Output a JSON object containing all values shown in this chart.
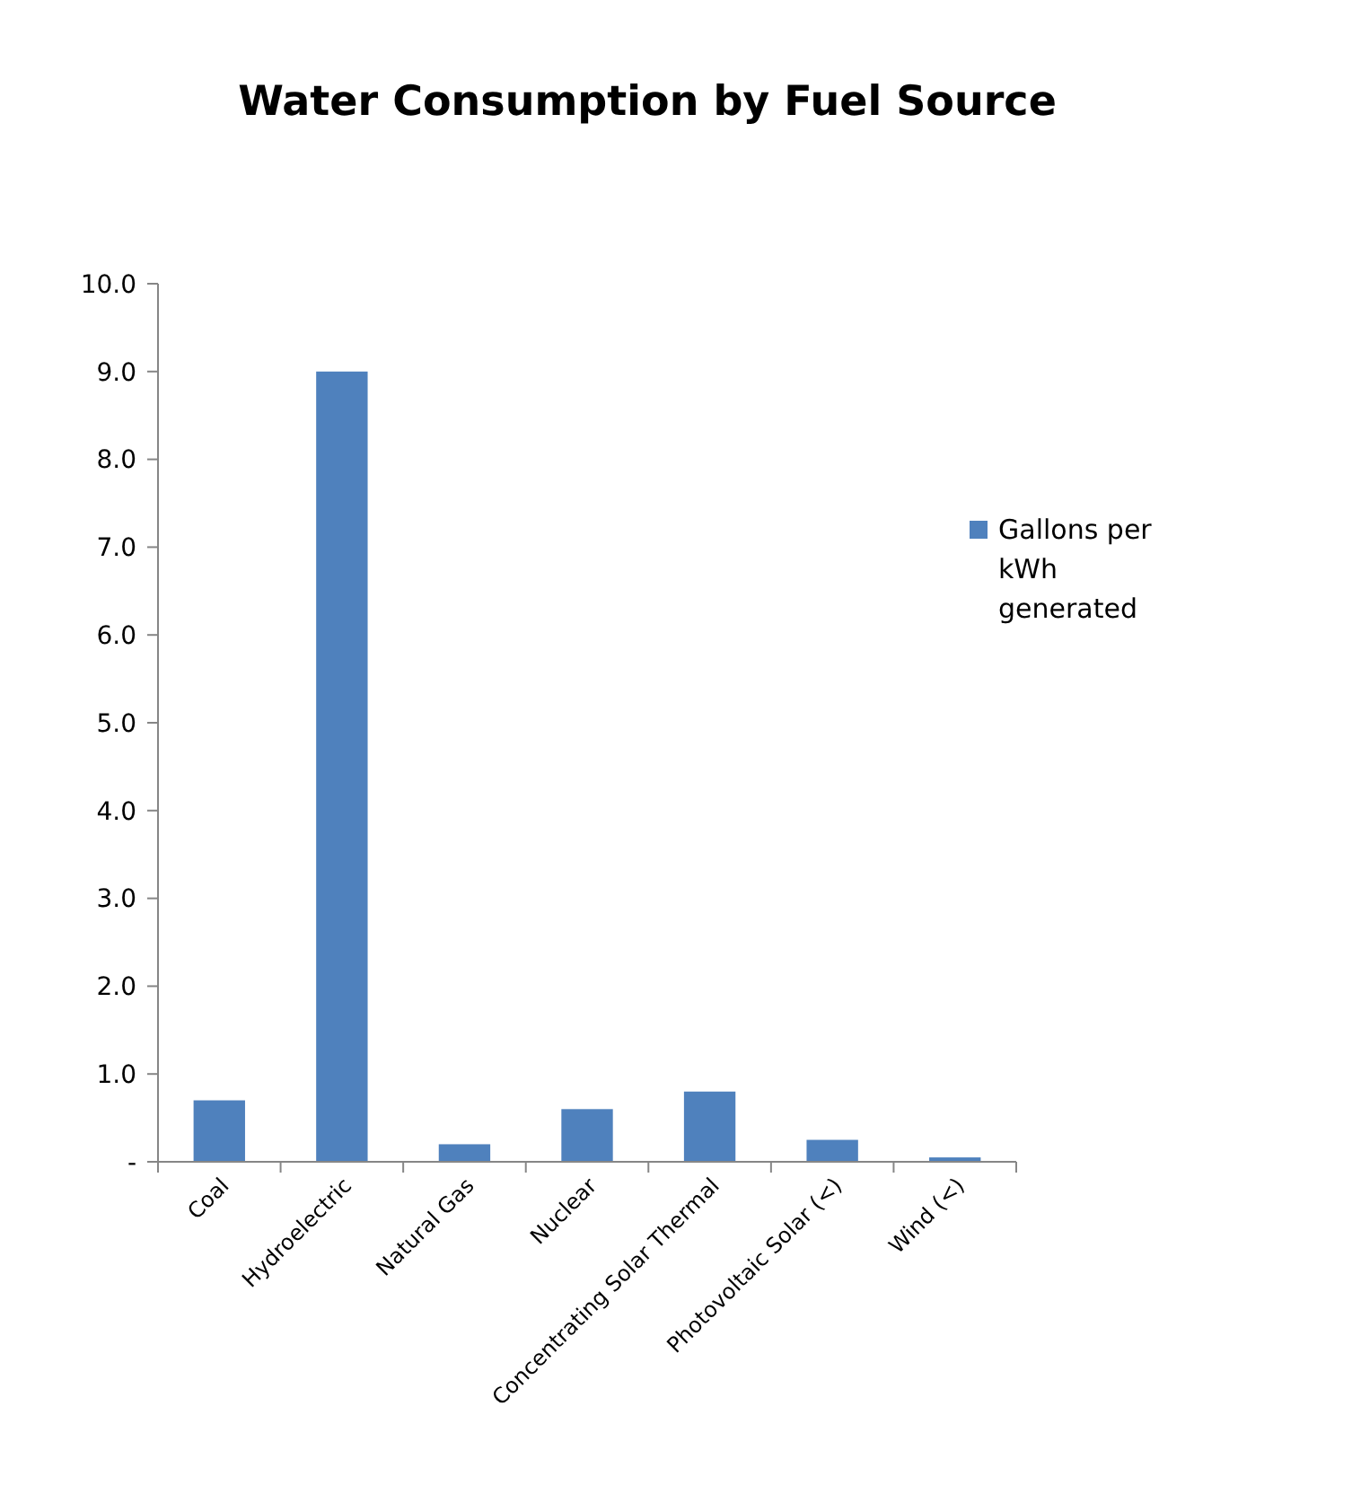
{
  "chart_data": {
    "type": "bar",
    "title": "Water Consumption  by Fuel Source",
    "categories": [
      "Coal",
      "Hydroelectric",
      "Natural Gas",
      "Nuclear",
      "Concentrating Solar Thermal",
      "Photovoltaic Solar (<)",
      "Wind (<)"
    ],
    "series": [
      {
        "name": "Gallons per kWh generated",
        "color": "#4f81bd",
        "values": [
          0.7,
          9.0,
          0.2,
          0.6,
          0.8,
          0.25,
          0.05
        ]
      }
    ],
    "ylim": [
      0,
      10
    ],
    "yticks": [
      {
        "value": 0,
        "label": "-"
      },
      {
        "value": 1,
        "label": "1.0"
      },
      {
        "value": 2,
        "label": "2.0"
      },
      {
        "value": 3,
        "label": "3.0"
      },
      {
        "value": 4,
        "label": "4.0"
      },
      {
        "value": 5,
        "label": "5.0"
      },
      {
        "value": 6,
        "label": "6.0"
      },
      {
        "value": 7,
        "label": "7.0"
      },
      {
        "value": 8,
        "label": "8.0"
      },
      {
        "value": 9,
        "label": "9.0"
      },
      {
        "value": 10,
        "label": "10.0"
      }
    ],
    "grid": false,
    "legend": "right"
  }
}
